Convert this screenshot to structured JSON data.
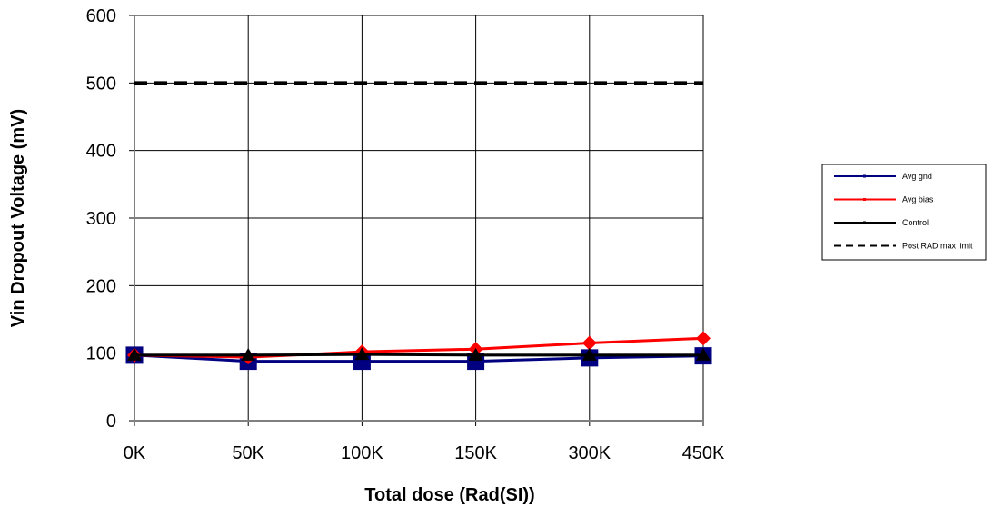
{
  "chart_data": {
    "type": "line",
    "title": "",
    "xlabel": "Total dose (Rad(SI))",
    "ylabel": "Vin Dropout Voltage (mV)",
    "categories": [
      "0K",
      "50K",
      "100K",
      "150K",
      "300K",
      "450K"
    ],
    "ylim": [
      0,
      600
    ],
    "yticks": [
      0,
      100,
      200,
      300,
      400,
      500,
      600
    ],
    "grid": true,
    "legend_position": "right",
    "series": [
      {
        "name": "Avg gnd",
        "values": [
          97,
          88,
          88,
          88,
          93,
          96
        ],
        "color": "#000080",
        "marker": "square",
        "line": "solid"
      },
      {
        "name": "Avg bias",
        "values": [
          97,
          94,
          102,
          106,
          115,
          122
        ],
        "color": "#ff0000",
        "marker": "diamond",
        "line": "solid"
      },
      {
        "name": "Control",
        "values": [
          97,
          97,
          98,
          97,
          97,
          97
        ],
        "color": "#000000",
        "marker": "triangle",
        "line": "solid"
      },
      {
        "name": "Post RAD max limit",
        "values": [
          500,
          500,
          500,
          500,
          500,
          500
        ],
        "color": "#000000",
        "marker": "none",
        "line": "dashed"
      }
    ]
  }
}
